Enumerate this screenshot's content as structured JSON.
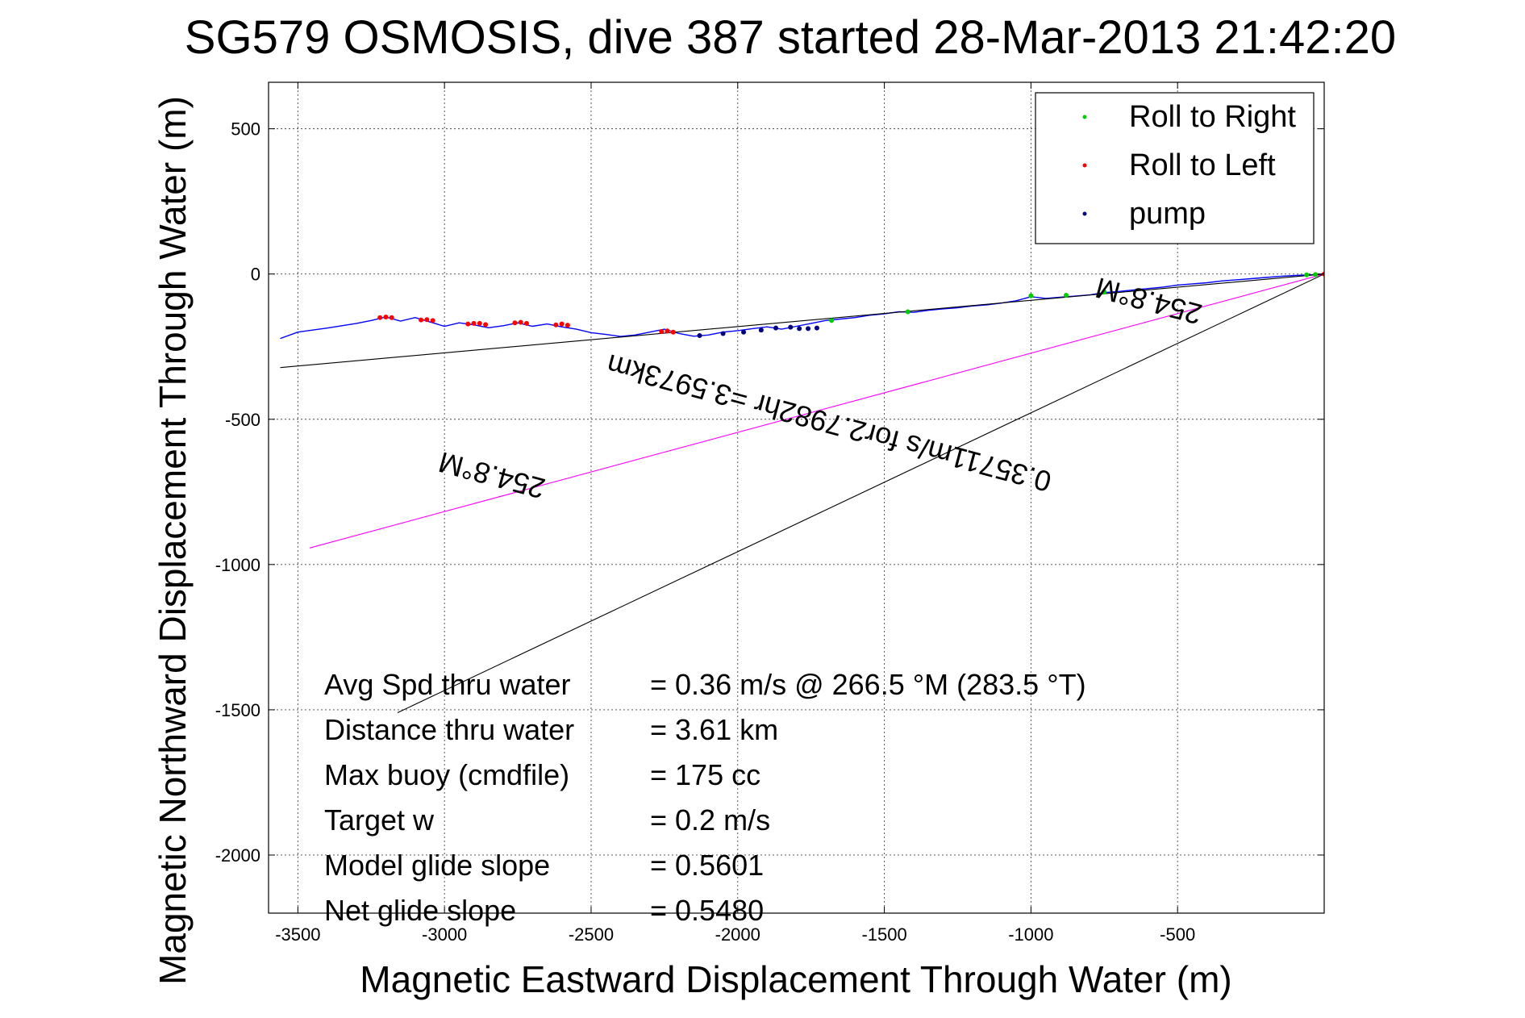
{
  "chart_data": {
    "type": "line",
    "title": "SG579 OSMOSIS, dive 387 started 28-Mar-2013 21:42:20",
    "xlabel": "Magnetic Eastward Displacement Through Water (m)",
    "ylabel": "Magnetic Northward Displacement Through Water (m)",
    "xlim": [
      -3600,
      0
    ],
    "ylim": [
      -2200,
      660
    ],
    "xticks": [
      -3500,
      -3000,
      -2500,
      -2000,
      -1500,
      -1000,
      -500
    ],
    "yticks": [
      500,
      0,
      -500,
      -1000,
      -1500,
      -2000
    ],
    "grid": true,
    "legend_position": "top-right",
    "legend": [
      {
        "label": "Roll to Right",
        "color": "#00cc00"
      },
      {
        "label": "Roll to Left",
        "color": "#ff0000"
      },
      {
        "label": "pump",
        "color": "#000080"
      }
    ],
    "series": [
      {
        "name": "track",
        "color": "#0000ff",
        "x": [
          -3560,
          -3500,
          -3400,
          -3300,
          -3250,
          -3200,
          -3150,
          -3100,
          -3050,
          -3000,
          -2950,
          -2900,
          -2850,
          -2800,
          -2750,
          -2700,
          -2650,
          -2600,
          -2550,
          -2500,
          -2450,
          -2400,
          -2350,
          -2300,
          -2250,
          -2200,
          -2150,
          -2100,
          -2050,
          -2000,
          -1950,
          -1900,
          -1850,
          -1800,
          -1750,
          -1700,
          -1650,
          -1600,
          -1550,
          -1500,
          -1450,
          -1400,
          -1350,
          -1300,
          -1250,
          -1200,
          -1150,
          -1100,
          -1050,
          -1000,
          -950,
          -900,
          -850,
          -800,
          -750,
          -700,
          -650,
          -600,
          -550,
          -500,
          -450,
          -400,
          -350,
          -300,
          -250,
          -200,
          -150,
          -100,
          -50,
          0
        ],
        "y": [
          -222,
          -200,
          -186,
          -170,
          -160,
          -148,
          -162,
          -150,
          -165,
          -180,
          -168,
          -175,
          -185,
          -178,
          -168,
          -180,
          -172,
          -182,
          -190,
          -202,
          -208,
          -215,
          -210,
          -200,
          -190,
          -205,
          -214,
          -210,
          -200,
          -195,
          -188,
          -182,
          -190,
          -180,
          -170,
          -160,
          -155,
          -150,
          -142,
          -137,
          -130,
          -132,
          -125,
          -120,
          -116,
          -110,
          -106,
          -100,
          -92,
          -78,
          -84,
          -80,
          -76,
          -72,
          -64,
          -60,
          -55,
          -50,
          -45,
          -38,
          -34,
          -30,
          -24,
          -20,
          -16,
          -12,
          -8,
          -5,
          -3,
          0
        ]
      },
      {
        "name": "heading-line",
        "color": "#ff00ff",
        "x": [
          -3460,
          0
        ],
        "y": [
          -943,
          0
        ]
      },
      {
        "name": "upper-ray",
        "color": "#000000",
        "x": [
          -3560,
          0
        ],
        "y": [
          -322,
          0
        ]
      },
      {
        "name": "lower-ray",
        "color": "#000000",
        "x": [
          -3160,
          0
        ],
        "y": [
          -1510,
          0
        ]
      }
    ],
    "markers": {
      "roll_right": {
        "color": "#00cc00",
        "x": [
          -1680,
          -1420,
          -1000,
          -880,
          -750,
          -60,
          -30
        ],
        "y": [
          -160,
          -130,
          -75,
          -73,
          -62,
          -3,
          -2
        ]
      },
      "roll_left": {
        "color": "#ff0000",
        "x": [
          -3220,
          -3200,
          -3180,
          -3080,
          -3060,
          -3040,
          -2920,
          -2900,
          -2880,
          -2860,
          -2760,
          -2740,
          -2720,
          -2620,
          -2600,
          -2580,
          -2260,
          -2240,
          -2220,
          0
        ],
        "y": [
          -150,
          -148,
          -150,
          -158,
          -157,
          -160,
          -172,
          -170,
          -170,
          -174,
          -168,
          -166,
          -170,
          -175,
          -172,
          -176,
          -198,
          -196,
          -200,
          0
        ]
      },
      "pump": {
        "color": "#000080",
        "x": [
          -2130,
          -2050,
          -1980,
          -1920,
          -1870,
          -1820,
          -1790,
          -1760,
          -1730
        ],
        "y": [
          -212,
          -205,
          -200,
          -193,
          -186,
          -183,
          -188,
          -188,
          -186
        ]
      }
    },
    "annotations": [
      {
        "text": "254.8°M",
        "x": -2830,
        "y": -660,
        "rotation_deg": 195
      },
      {
        "text": "0.35711m/s for2.7982hr =3.5973km",
        "x": -1680,
        "y": -480,
        "rotation_deg": 195
      },
      {
        "text": "254.8°M",
        "x": -590,
        "y": -60,
        "rotation_deg": 195
      }
    ],
    "stats": [
      {
        "label": "Avg Spd thru water",
        "value": "=  0.36 m/s @ 266.5 °M (283.5 °T)"
      },
      {
        "label": "Distance thru water",
        "value": "=  3.61 km"
      },
      {
        "label": "Max buoy (cmdfile)",
        "value": "= 175 cc"
      },
      {
        "label": "Target w",
        "value": "= 0.2 m/s"
      },
      {
        "label": "Model glide slope",
        "value": "= 0.5601"
      },
      {
        "label": "Net glide slope",
        "value": "= 0.5480"
      }
    ]
  }
}
